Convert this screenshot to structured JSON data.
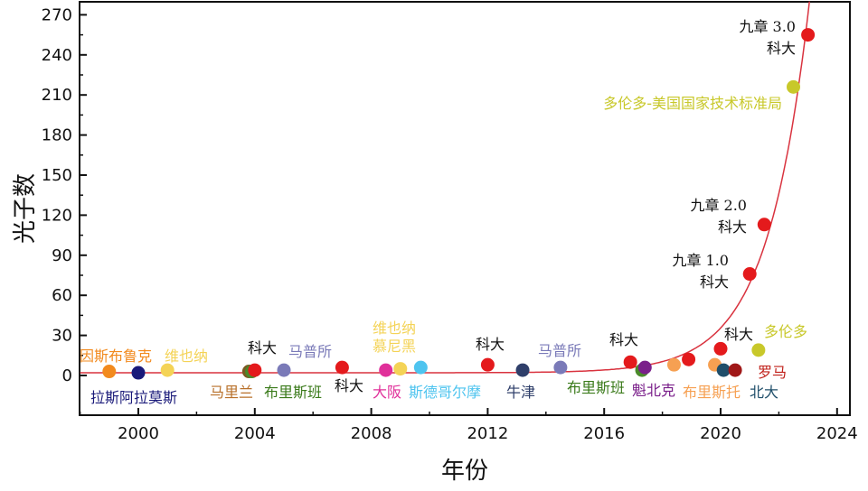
{
  "chart_data": {
    "type": "scatter",
    "xlabel": "年份",
    "ylabel": "光子数",
    "xlim": [
      1998,
      2025
    ],
    "ylim": [
      -25,
      275
    ],
    "xticks": [
      2000,
      2004,
      2008,
      2012,
      2016,
      2020,
      2024
    ],
    "yticks": [
      0,
      30,
      60,
      90,
      120,
      150,
      180,
      210,
      240,
      270
    ],
    "grid": false,
    "legend": "none",
    "points": [
      {
        "x": 1999.0,
        "y": 3,
        "color": "#f28a1e"
      },
      {
        "x": 2000.0,
        "y": 2,
        "color": "#1a1a7a"
      },
      {
        "x": 2001.0,
        "y": 4,
        "color": "#f4d356"
      },
      {
        "x": 2003.8,
        "y": 3,
        "color": "#7a5a22"
      },
      {
        "x": 2003.9,
        "y": 3,
        "color": "#4a8a2a"
      },
      {
        "x": 2004.0,
        "y": 4,
        "color": "#e41a1c"
      },
      {
        "x": 2005.0,
        "y": 4,
        "color": "#7a7ab8"
      },
      {
        "x": 2007.0,
        "y": 6,
        "color": "#e41a1c"
      },
      {
        "x": 2008.5,
        "y": 4,
        "color": "#e0309a"
      },
      {
        "x": 2009.0,
        "y": 5,
        "color": "#f4d356"
      },
      {
        "x": 2009.7,
        "y": 6,
        "color": "#4ec4ef"
      },
      {
        "x": 2012.0,
        "y": 8,
        "color": "#e41a1c"
      },
      {
        "x": 2013.2,
        "y": 4,
        "color": "#2f3f6a"
      },
      {
        "x": 2014.5,
        "y": 6,
        "color": "#7a7ab8"
      },
      {
        "x": 2016.9,
        "y": 10,
        "color": "#e41a1c"
      },
      {
        "x": 2017.3,
        "y": 4,
        "color": "#4a8a2a"
      },
      {
        "x": 2017.4,
        "y": 6,
        "color": "#7a1f8a"
      },
      {
        "x": 2018.4,
        "y": 8,
        "color": "#f6a052"
      },
      {
        "x": 2018.9,
        "y": 12,
        "color": "#e41a1c"
      },
      {
        "x": 2019.8,
        "y": 8,
        "color": "#f6a052"
      },
      {
        "x": 2020.0,
        "y": 20,
        "color": "#e41a1c"
      },
      {
        "x": 2020.1,
        "y": 4,
        "color": "#1f4e6a"
      },
      {
        "x": 2020.5,
        "y": 4,
        "color": "#a01818"
      },
      {
        "x": 2021.0,
        "y": 76,
        "color": "#e41a1c"
      },
      {
        "x": 2021.3,
        "y": 19,
        "color": "#c8c82a"
      },
      {
        "x": 2021.5,
        "y": 113,
        "color": "#e41a1c"
      },
      {
        "x": 2022.5,
        "y": 216,
        "color": "#c8c82a"
      },
      {
        "x": 2023.0,
        "y": 255,
        "color": "#e41a1c"
      }
    ],
    "fit_curve": {
      "color": "#d9333f",
      "base": 2,
      "amp": 1e-06,
      "x0": 1995,
      "offset": 2
    },
    "annotations": [
      {
        "text": "因斯布鲁克",
        "color": "#f28a1e"
      },
      {
        "text": "拉斯阿拉莫斯",
        "color": "#1a1a7a"
      },
      {
        "text": "维也纳",
        "color": "#f4d356"
      },
      {
        "text": "马里兰",
        "color": "#b8702a"
      },
      {
        "text": "科大",
        "color": "#111111"
      },
      {
        "text": "布里斯班",
        "color": "#3a7a1a"
      },
      {
        "text": "马普所",
        "color": "#7a7ab8"
      },
      {
        "text": "科大",
        "color": "#111111"
      },
      {
        "text": "大阪",
        "color": "#e0309a"
      },
      {
        "text": "维也纳",
        "color": "#f4d356"
      },
      {
        "text": "慕尼黑",
        "color": "#f4d356"
      },
      {
        "text": "斯德哥尔摩",
        "color": "#4ec4ef"
      },
      {
        "text": "科大",
        "color": "#111111"
      },
      {
        "text": "牛津",
        "color": "#2f3f6a"
      },
      {
        "text": "马普所",
        "color": "#7a7ab8"
      },
      {
        "text": "科大",
        "color": "#111111"
      },
      {
        "text": "布里斯班",
        "color": "#3a7a1a"
      },
      {
        "text": "魁北克",
        "color": "#7a1f8a"
      },
      {
        "text": "布里斯托",
        "color": "#f6a052"
      },
      {
        "text": "科大",
        "color": "#111111"
      },
      {
        "text": "北大",
        "color": "#1f4e6a"
      },
      {
        "text": "罗马",
        "color": "#c0201a"
      },
      {
        "text": "多伦多",
        "color": "#c8c82a"
      },
      {
        "text": "九章 1.0",
        "color": "#111111",
        "serif": true
      },
      {
        "text": "科大",
        "color": "#111111"
      },
      {
        "text": "九章 2.0",
        "color": "#111111",
        "serif": true
      },
      {
        "text": "科大",
        "color": "#111111"
      },
      {
        "text": "多伦多-美国国家技术标准局",
        "color": "#c8c82a"
      },
      {
        "text": "九章 3.0",
        "color": "#111111",
        "serif": true
      },
      {
        "text": "科大",
        "color": "#111111"
      }
    ]
  }
}
